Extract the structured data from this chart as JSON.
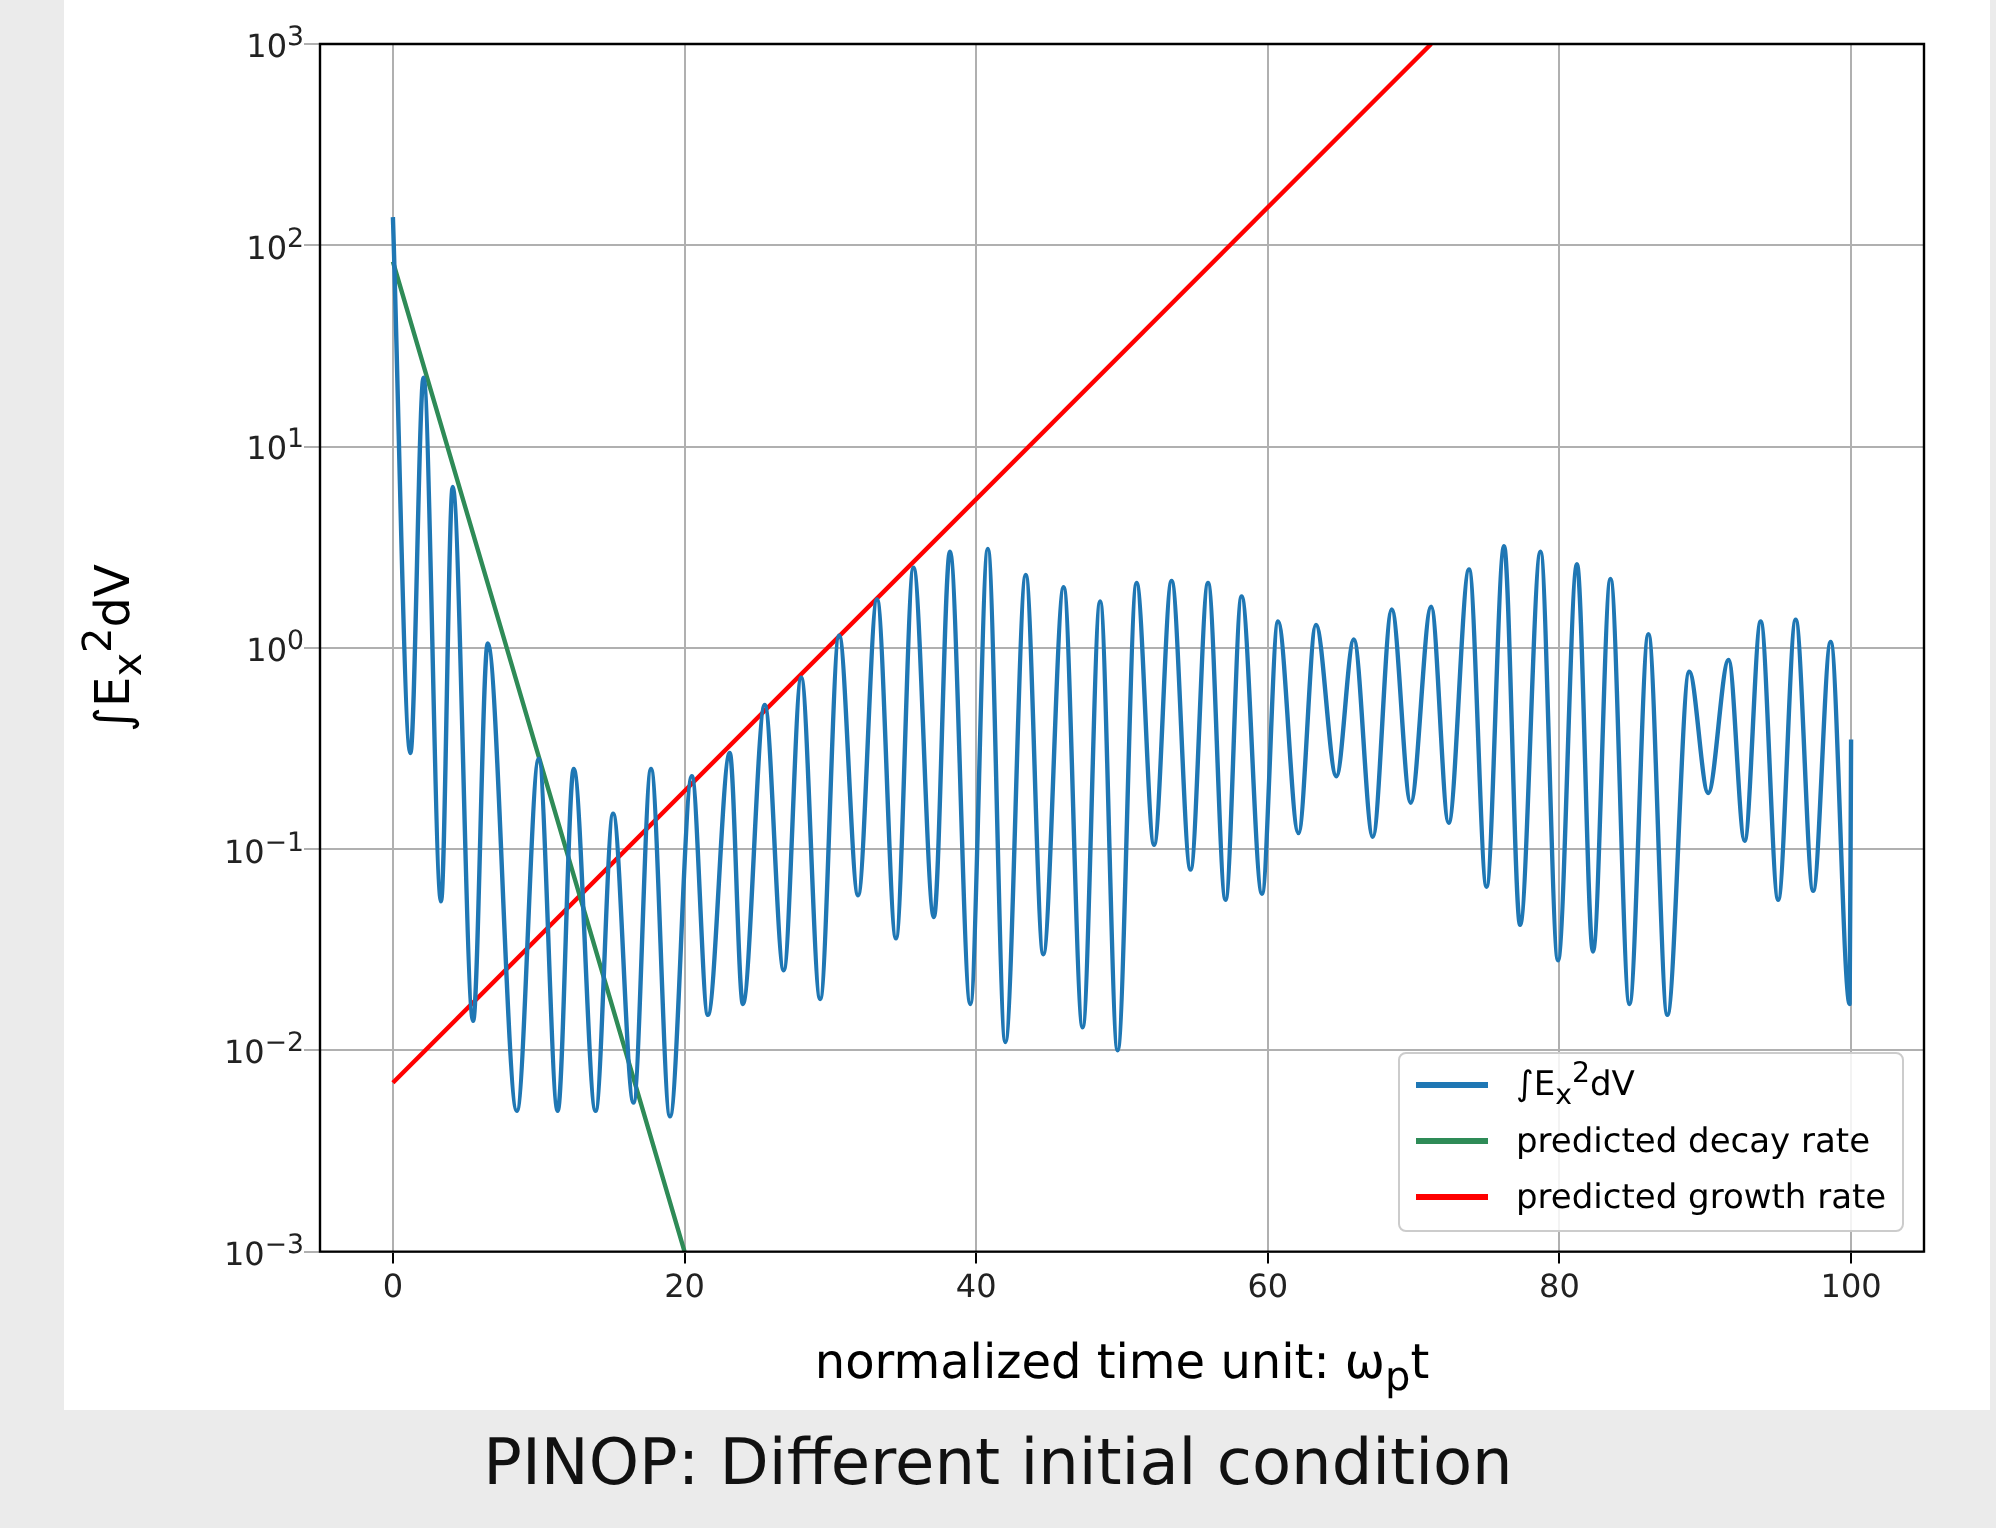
{
  "chart_data": {
    "type": "line",
    "xlabel": "normalized time unit: ω$_{p}$t",
    "ylabel": "∫E$_{x}$$^{2}$dV",
    "annotations": [
      "PINOP: Different initial condition"
    ],
    "log": "y",
    "grid": true,
    "legend": "bottom right",
    "xlim": [
      -5,
      105
    ],
    "xticks": [
      0,
      20,
      40,
      60,
      80,
      100
    ],
    "ylim": [
      0.001,
      1000
    ],
    "yticks": [
      {
        "value": 0.001,
        "label": "10$^{−3}$"
      },
      {
        "value": 0.01,
        "label": "10$^{−2}$"
      },
      {
        "value": 0.1,
        "label": "10$^{−1}$"
      },
      {
        "value": 1,
        "label": "10$^{0}$"
      },
      {
        "value": 10,
        "label": "10$^{1}$"
      },
      {
        "value": 100,
        "label": "10$^{2}$"
      },
      {
        "value": 1000,
        "label": "10$^{3}$"
      }
    ],
    "series": [
      {
        "name": "∫E$_{x}$$^{2}$dV",
        "color": "#1f77b4",
        "x": [
          0,
          1.2,
          2.1,
          3.3,
          4.1,
          5.5,
          6.5,
          8.5,
          10,
          11.3,
          12.4,
          13.9,
          15.1,
          16.5,
          17.7,
          19,
          20.5,
          21.6,
          23.1,
          24,
          25.5,
          26.8,
          28,
          29.3,
          30.6,
          31.9,
          33.2,
          34.5,
          35.7,
          37.1,
          38.2,
          39.6,
          40.8,
          42,
          43.4,
          44.6,
          46,
          47.3,
          48.5,
          49.7,
          51,
          52.2,
          53.4,
          54.7,
          55.9,
          57.1,
          58.2,
          59.6,
          60.7,
          62.1,
          63.3,
          64.7,
          65.9,
          67.2,
          68.5,
          69.8,
          71.2,
          72.4,
          73.8,
          75,
          76.2,
          77.3,
          78.7,
          79.9,
          81.2,
          82.3,
          83.5,
          84.8,
          86.1,
          87.4,
          88.9,
          90.2,
          91.6,
          92.7,
          93.8,
          95,
          96.2,
          97.4,
          98.6,
          99.9,
          100
        ],
        "values": [
          138,
          0.3,
          22,
          0.055,
          6.3,
          0.014,
          1.05,
          0.005,
          0.28,
          0.005,
          0.25,
          0.005,
          0.15,
          0.0055,
          0.25,
          0.0047,
          0.23,
          0.015,
          0.3,
          0.017,
          0.52,
          0.025,
          0.71,
          0.018,
          1.15,
          0.059,
          1.74,
          0.036,
          2.5,
          0.046,
          3,
          0.017,
          3.1,
          0.011,
          2.3,
          0.03,
          2,
          0.013,
          1.7,
          0.01,
          2.1,
          0.105,
          2.15,
          0.079,
          2.1,
          0.056,
          1.8,
          0.06,
          1.35,
          0.12,
          1.3,
          0.23,
          1.1,
          0.115,
          1.55,
          0.17,
          1.6,
          0.135,
          2.45,
          0.065,
          3.2,
          0.042,
          3,
          0.028,
          2.6,
          0.031,
          2.2,
          0.017,
          1.17,
          0.015,
          0.76,
          0.19,
          0.87,
          0.11,
          1.35,
          0.056,
          1.38,
          0.062,
          1.07,
          0.017,
          0.35
        ]
      },
      {
        "name": "predicted decay rate",
        "color": "#2e8b57",
        "x": [
          0,
          20
        ],
        "values": [
          83,
          0.001
        ]
      },
      {
        "name": "predicted growth rate",
        "color": "#ff0000",
        "x": [
          0,
          71.2
        ],
        "values": [
          0.0069,
          1000
        ]
      }
    ]
  }
}
